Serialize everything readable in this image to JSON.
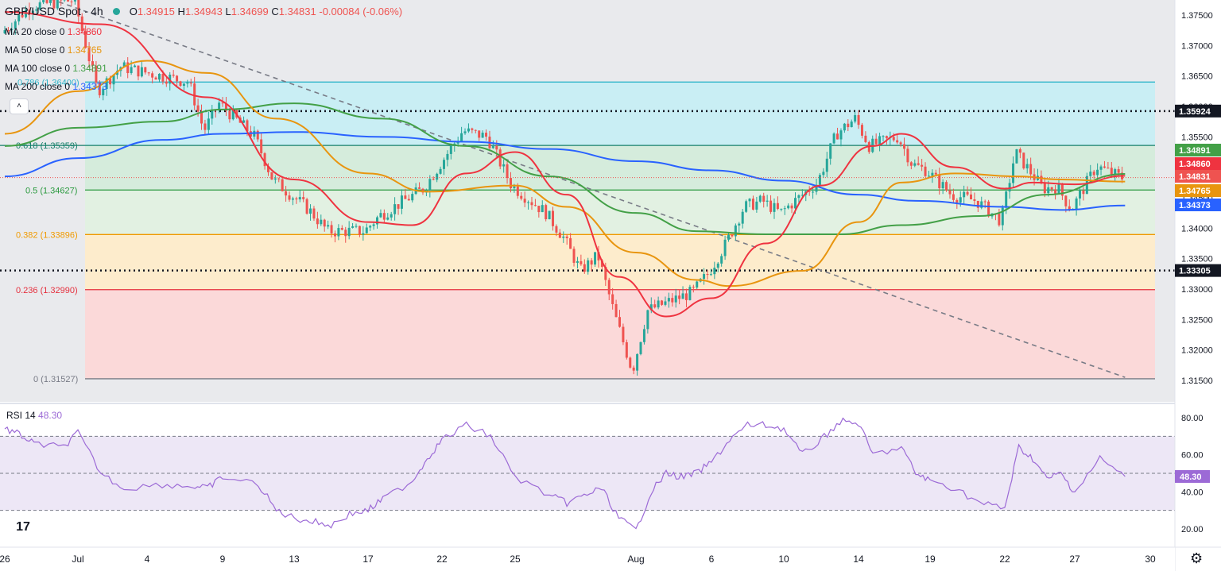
{
  "header": {
    "title": "GBP/USD Spot · 4h",
    "open_label": "O",
    "open": "1.34915",
    "high_label": "H",
    "high": "1.34943",
    "low_label": "L",
    "low": "1.34699",
    "close_label": "C",
    "close": "1.34831",
    "change": "-0.00084 (-0.06%)"
  },
  "ma_legend": [
    {
      "label": "MA 20 close 0",
      "value": "1.34860",
      "color": "#ef3340"
    },
    {
      "label": "MA 50 close 0",
      "value": "1.34765",
      "color": "#e8950f"
    },
    {
      "label": "MA 100 close 0",
      "value": "1.34891",
      "color": "#43a047"
    },
    {
      "label": "MA 200 close 0",
      "value": "1.34373",
      "color": "#2962ff"
    }
  ],
  "rsi_legend": {
    "label": "RSI 14",
    "value": "48.30"
  },
  "collapse_icon": "chevron-up-icon",
  "logo_text": "17",
  "settings_icon": "gear-icon",
  "colors": {
    "up": "#26a69a",
    "down": "#ef5350",
    "ma20": "#ef3340",
    "ma50": "#e8950f",
    "ma100": "#43a047",
    "ma200": "#2962ff",
    "rsi": "#9c6ad6",
    "trendline": "#787b86"
  },
  "chart_data": [
    {
      "type": "candlestick",
      "title": "GBP/USD Spot · 4h",
      "x_ticks": [
        "26",
        "Jul",
        "4",
        "9",
        "13",
        "17",
        "22",
        "25",
        "Aug",
        "6",
        "10",
        "14",
        "19",
        "22",
        "27",
        "30"
      ],
      "y_ticks": [
        "1.37500",
        "1.37000",
        "1.36500",
        "1.36000",
        "1.35500",
        "1.35000",
        "1.34500",
        "1.34000",
        "1.33500",
        "1.33000",
        "1.32500",
        "1.32000",
        "1.31500"
      ],
      "ylim": [
        1.3142,
        1.3785
      ],
      "fibonacci": [
        {
          "level": "0.786",
          "label": "0.786 (1.36400)",
          "price": 1.364,
          "line_color": "#2fb5ca",
          "fill": "#c9eef4"
        },
        {
          "level": "0.618",
          "label": "0.618 (1.35359)",
          "price": 1.35359,
          "line_color": "#16806b",
          "fill": "#d5ecdc"
        },
        {
          "level": "0.5",
          "label": "0.5 (1.34627)",
          "price": 1.34627,
          "line_color": "#2b9a3f",
          "fill": "#e2f1e2"
        },
        {
          "level": "0.382",
          "label": "0.382 (1.33896)",
          "price": 1.33896,
          "line_color": "#f09a00",
          "fill": "#fdeccc"
        },
        {
          "level": "0.236",
          "label": "0.236 (1.32990)",
          "price": 1.3299,
          "line_color": "#e5303e",
          "fill": "#fbd9d9"
        },
        {
          "level": "0",
          "label": "0 (1.31527)",
          "price": 1.31527,
          "line_color": "#787b86",
          "fill": null
        }
      ],
      "horizontal_levels": [
        {
          "price": 1.35924,
          "label": "1.35924",
          "style": "dotted"
        },
        {
          "price": 1.33305,
          "label": "1.33305",
          "style": "dotted"
        }
      ],
      "trendline": {
        "from": {
          "x": "Jun 28",
          "price": 1.3786
        },
        "to": {
          "x": "Aug 29",
          "price": 1.3155
        },
        "style": "dashed"
      },
      "price_tags": [
        {
          "name": "MA 100",
          "value": "1.34891",
          "color": "#43a047"
        },
        {
          "name": "MA 20",
          "value": "1.34860",
          "color": "#ef3340"
        },
        {
          "name": "Last close",
          "value": "1.34831",
          "color": "#ef5350"
        },
        {
          "name": "MA 50",
          "value": "1.34765",
          "color": "#e8950f"
        },
        {
          "name": "MA 200",
          "value": "1.34373",
          "color": "#2962ff"
        }
      ],
      "path_keypoints": [
        {
          "x": "Jun 26",
          "price": 1.372
        },
        {
          "x": "Jun 28",
          "price": 1.3765
        },
        {
          "x": "Jul 1",
          "price": 1.3775
        },
        {
          "x": "Jul 2",
          "price": 1.3625
        },
        {
          "x": "Jul 3",
          "price": 1.3665
        },
        {
          "x": "Jul 7",
          "price": 1.364
        },
        {
          "x": "Jul 8",
          "price": 1.356
        },
        {
          "x": "Jul 9",
          "price": 1.3605
        },
        {
          "x": "Jul 11",
          "price": 1.355
        },
        {
          "x": "Jul 12",
          "price": 1.348
        },
        {
          "x": "Jul 14",
          "price": 1.343
        },
        {
          "x": "Jul 15",
          "price": 1.3395
        },
        {
          "x": "Jul 17",
          "price": 1.3395
        },
        {
          "x": "Jul 18",
          "price": 1.342
        },
        {
          "x": "Jul 21",
          "price": 1.3465
        },
        {
          "x": "Jul 23",
          "price": 1.356
        },
        {
          "x": "Jul 24",
          "price": 1.355
        },
        {
          "x": "Jul 25",
          "price": 1.347
        },
        {
          "x": "Jul 27",
          "price": 1.3425
        },
        {
          "x": "Jul 28",
          "price": 1.3385
        },
        {
          "x": "Jul 29",
          "price": 1.333
        },
        {
          "x": "Jul 30",
          "price": 1.3355
        },
        {
          "x": "Jul 31",
          "price": 1.3255
        },
        {
          "x": "Aug 1",
          "price": 1.3165
        },
        {
          "x": "Aug 2",
          "price": 1.3265
        },
        {
          "x": "Aug 4",
          "price": 1.3285
        },
        {
          "x": "Aug 5",
          "price": 1.3295
        },
        {
          "x": "Aug 6",
          "price": 1.3325
        },
        {
          "x": "Aug 7",
          "price": 1.3375
        },
        {
          "x": "Aug 8",
          "price": 1.3435
        },
        {
          "x": "Aug 9",
          "price": 1.3445
        },
        {
          "x": "Aug 10",
          "price": 1.3425
        },
        {
          "x": "Aug 12",
          "price": 1.3475
        },
        {
          "x": "Aug 13",
          "price": 1.3555
        },
        {
          "x": "Aug 14",
          "price": 1.358
        },
        {
          "x": "Aug 15",
          "price": 1.3535
        },
        {
          "x": "Aug 17",
          "price": 1.355
        },
        {
          "x": "Aug 18",
          "price": 1.3505
        },
        {
          "x": "Aug 19",
          "price": 1.3495
        },
        {
          "x": "Aug 20",
          "price": 1.3455
        },
        {
          "x": "Aug 21",
          "price": 1.3445
        },
        {
          "x": "Aug 22",
          "price": 1.3412
        },
        {
          "x": "Aug 23",
          "price": 1.3525
        },
        {
          "x": "Aug 24",
          "price": 1.3495
        },
        {
          "x": "Aug 25",
          "price": 1.3465
        },
        {
          "x": "Aug 26",
          "price": 1.3468
        },
        {
          "x": "Aug 27",
          "price": 1.343
        },
        {
          "x": "Aug 28",
          "price": 1.3502
        },
        {
          "x": "Aug 29",
          "price": 1.3483
        }
      ],
      "moving_averages": [
        {
          "name": "MA 20",
          "last": 1.3486,
          "points": [
            {
              "x": "Jun 26",
              "price": 1.3755
            },
            {
              "x": "Jul 2",
              "price": 1.3735
            },
            {
              "x": "Jul 8",
              "price": 1.3615
            },
            {
              "x": "Jul 13",
              "price": 1.348
            },
            {
              "x": "Jul 17",
              "price": 1.341
            },
            {
              "x": "Jul 20",
              "price": 1.3405
            },
            {
              "x": "Jul 23",
              "price": 1.349
            },
            {
              "x": "Jul 25",
              "price": 1.3525
            },
            {
              "x": "Jul 28",
              "price": 1.3455
            },
            {
              "x": "Jul 31",
              "price": 1.332
            },
            {
              "x": "Aug 3",
              "price": 1.3255
            },
            {
              "x": "Aug 6",
              "price": 1.3285
            },
            {
              "x": "Aug 9",
              "price": 1.3375
            },
            {
              "x": "Aug 12",
              "price": 1.347
            },
            {
              "x": "Aug 15",
              "price": 1.3535
            },
            {
              "x": "Aug 17",
              "price": 1.3555
            },
            {
              "x": "Aug 20",
              "price": 1.35
            },
            {
              "x": "Aug 22",
              "price": 1.3465
            },
            {
              "x": "Aug 24",
              "price": 1.3475
            },
            {
              "x": "Aug 27",
              "price": 1.3472
            },
            {
              "x": "Aug 29",
              "price": 1.3486
            }
          ]
        },
        {
          "name": "MA 50",
          "last": 1.34765,
          "points": [
            {
              "x": "Jun 26",
              "price": 1.3555
            },
            {
              "x": "Jul 1",
              "price": 1.3625
            },
            {
              "x": "Jul 4",
              "price": 1.3675
            },
            {
              "x": "Jul 8",
              "price": 1.3655
            },
            {
              "x": "Jul 12",
              "price": 1.358
            },
            {
              "x": "Jul 17",
              "price": 1.349
            },
            {
              "x": "Jul 21",
              "price": 1.346
            },
            {
              "x": "Jul 25",
              "price": 1.347
            },
            {
              "x": "Jul 28",
              "price": 1.3435
            },
            {
              "x": "Aug 1",
              "price": 1.336
            },
            {
              "x": "Aug 5",
              "price": 1.3315
            },
            {
              "x": "Aug 7",
              "price": 1.3305
            },
            {
              "x": "Aug 11",
              "price": 1.333
            },
            {
              "x": "Aug 14",
              "price": 1.341
            },
            {
              "x": "Aug 17",
              "price": 1.3475
            },
            {
              "x": "Aug 20",
              "price": 1.349
            },
            {
              "x": "Aug 23",
              "price": 1.3485
            },
            {
              "x": "Aug 26",
              "price": 1.348
            },
            {
              "x": "Aug 29",
              "price": 1.34765
            }
          ]
        },
        {
          "name": "MA 100",
          "last": 1.34891,
          "points": [
            {
              "x": "Jun 26",
              "price": 1.3535
            },
            {
              "x": "Jul 1",
              "price": 1.3565
            },
            {
              "x": "Jul 5",
              "price": 1.3575
            },
            {
              "x": "Jul 9",
              "price": 1.3595
            },
            {
              "x": "Jul 13",
              "price": 1.3605
            },
            {
              "x": "Jul 18",
              "price": 1.358
            },
            {
              "x": "Jul 23",
              "price": 1.3535
            },
            {
              "x": "Jul 27",
              "price": 1.3485
            },
            {
              "x": "Aug 1",
              "price": 1.3425
            },
            {
              "x": "Aug 5",
              "price": 1.3395
            },
            {
              "x": "Aug 9",
              "price": 1.339
            },
            {
              "x": "Aug 13",
              "price": 1.339
            },
            {
              "x": "Aug 17",
              "price": 1.3405
            },
            {
              "x": "Aug 21",
              "price": 1.342
            },
            {
              "x": "Aug 25",
              "price": 1.3455
            },
            {
              "x": "Aug 29",
              "price": 1.34891
            }
          ]
        },
        {
          "name": "MA 200",
          "last": 1.34373,
          "points": [
            {
              "x": "Jun 26",
              "price": 1.3485
            },
            {
              "x": "Jul 1",
              "price": 1.3515
            },
            {
              "x": "Jul 5",
              "price": 1.3545
            },
            {
              "x": "Jul 9",
              "price": 1.3555
            },
            {
              "x": "Jul 13",
              "price": 1.3558
            },
            {
              "x": "Jul 18",
              "price": 1.355
            },
            {
              "x": "Jul 23",
              "price": 1.3542
            },
            {
              "x": "Jul 27",
              "price": 1.353
            },
            {
              "x": "Aug 1",
              "price": 1.351
            },
            {
              "x": "Aug 6",
              "price": 1.3495
            },
            {
              "x": "Aug 10",
              "price": 1.3478
            },
            {
              "x": "Aug 14",
              "price": 1.3455
            },
            {
              "x": "Aug 18",
              "price": 1.3445
            },
            {
              "x": "Aug 22",
              "price": 1.3435
            },
            {
              "x": "Aug 26",
              "price": 1.343
            },
            {
              "x": "Aug 29",
              "price": 1.34373
            }
          ]
        }
      ]
    },
    {
      "type": "line",
      "title": "RSI 14",
      "y_ticks": [
        "80.00",
        "60.00",
        "40.00",
        "20.00"
      ],
      "ylim": [
        12,
        84
      ],
      "band": {
        "upper": 70,
        "middle": 50,
        "lower": 30
      },
      "last_value": "48.30",
      "series": [
        {
          "values": [
            {
              "x": "Jun 26",
              "v": 74
            },
            {
              "x": "Jun 27",
              "v": 71
            },
            {
              "x": "Jun 28",
              "v": 66
            },
            {
              "x": "Jun 30",
              "v": 64
            },
            {
              "x": "Jul 1",
              "v": 72
            },
            {
              "x": "Jul 2",
              "v": 50
            },
            {
              "x": "Jul 3",
              "v": 42
            },
            {
              "x": "Jul 5",
              "v": 44
            },
            {
              "x": "Jul 7",
              "v": 43
            },
            {
              "x": "Jul 8",
              "v": 42
            },
            {
              "x": "Jul 9",
              "v": 48
            },
            {
              "x": "Jul 11",
              "v": 44
            },
            {
              "x": "Jul 12",
              "v": 30
            },
            {
              "x": "Jul 13",
              "v": 26
            },
            {
              "x": "Jul 14",
              "v": 24
            },
            {
              "x": "Jul 15",
              "v": 22
            },
            {
              "x": "Jul 16",
              "v": 28
            },
            {
              "x": "Jul 17",
              "v": 30
            },
            {
              "x": "Jul 18",
              "v": 36
            },
            {
              "x": "Jul 20",
              "v": 46
            },
            {
              "x": "Jul 21",
              "v": 58
            },
            {
              "x": "Jul 22",
              "v": 68
            },
            {
              "x": "Jul 23",
              "v": 76
            },
            {
              "x": "Jul 24",
              "v": 70
            },
            {
              "x": "Jul 25",
              "v": 48
            },
            {
              "x": "Jul 27",
              "v": 38
            },
            {
              "x": "Jul 28",
              "v": 34
            },
            {
              "x": "Jul 29",
              "v": 38
            },
            {
              "x": "Jul 30",
              "v": 42
            },
            {
              "x": "Jul 31",
              "v": 26
            },
            {
              "x": "Aug 1",
              "v": 19
            },
            {
              "x": "Aug 2",
              "v": 40
            },
            {
              "x": "Aug 3",
              "v": 50
            },
            {
              "x": "Aug 4",
              "v": 48
            },
            {
              "x": "Aug 5",
              "v": 50
            },
            {
              "x": "Aug 6",
              "v": 56
            },
            {
              "x": "Aug 7",
              "v": 68
            },
            {
              "x": "Aug 8",
              "v": 76
            },
            {
              "x": "Aug 9",
              "v": 76
            },
            {
              "x": "Aug 10",
              "v": 74
            },
            {
              "x": "Aug 11",
              "v": 60
            },
            {
              "x": "Aug 12",
              "v": 68
            },
            {
              "x": "Aug 13",
              "v": 78
            },
            {
              "x": "Aug 14",
              "v": 77
            },
            {
              "x": "Aug 15",
              "v": 60
            },
            {
              "x": "Aug 17",
              "v": 64
            },
            {
              "x": "Aug 18",
              "v": 50
            },
            {
              "x": "Aug 19",
              "v": 46
            },
            {
              "x": "Aug 20",
              "v": 42
            },
            {
              "x": "Aug 21",
              "v": 34
            },
            {
              "x": "Aug 22",
              "v": 31
            },
            {
              "x": "Aug 23",
              "v": 64
            },
            {
              "x": "Aug 24",
              "v": 58
            },
            {
              "x": "Aug 25",
              "v": 47
            },
            {
              "x": "Aug 26",
              "v": 50
            },
            {
              "x": "Aug 27",
              "v": 40
            },
            {
              "x": "Aug 28",
              "v": 58
            },
            {
              "x": "Aug 29",
              "v": 48.3
            }
          ]
        }
      ]
    }
  ]
}
